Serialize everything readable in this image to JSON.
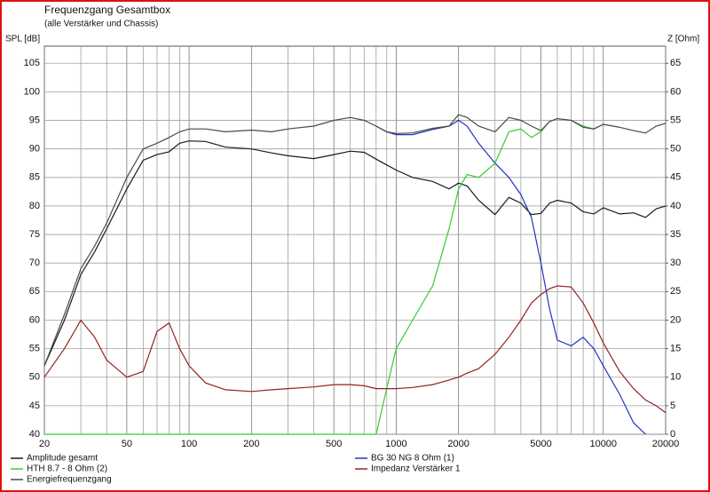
{
  "chart_data": {
    "type": "line",
    "title": "Frequenzgang Gesamtbox",
    "subtitle": "(alle Verstärker und Chassis)",
    "y_label": "SPL [dB]",
    "y2_label": "Z [Ohm]",
    "xscale": "log",
    "grid": true,
    "legend": "bottom",
    "x": [
      20,
      25,
      30,
      35,
      40,
      50,
      60,
      70,
      80,
      90,
      100,
      120,
      150,
      200,
      250,
      300,
      400,
      500,
      600,
      700,
      800,
      900,
      1000,
      1200,
      1500,
      1800,
      2000,
      2200,
      2500,
      3000,
      3500,
      4000,
      4500,
      5000,
      5500,
      6000,
      7000,
      8000,
      9000,
      10000,
      12000,
      14000,
      16000,
      18000,
      20000
    ],
    "xlim": [
      20,
      20000
    ],
    "xticks": [
      20,
      50,
      100,
      200,
      500,
      1000,
      2000,
      5000,
      10000,
      20000
    ],
    "xminor": [
      30,
      40,
      60,
      70,
      80,
      90,
      300,
      400,
      600,
      700,
      800,
      900,
      3000,
      4000,
      6000,
      7000,
      8000,
      9000
    ],
    "ylim": [
      40,
      108
    ],
    "yticks": [
      40,
      45,
      50,
      55,
      60,
      65,
      70,
      75,
      80,
      85,
      90,
      95,
      100,
      105
    ],
    "y2lim": [
      0,
      68
    ],
    "y2ticks": [
      0,
      5,
      10,
      15,
      20,
      25,
      30,
      35,
      40,
      45,
      50,
      55,
      60,
      65
    ],
    "series": [
      {
        "name": "Amplitude gesamt",
        "color": "#1a1a1a",
        "values": [
          52,
          60,
          68,
          72,
          76,
          83,
          88,
          89,
          89.5,
          91,
          91.4,
          91.3,
          90.3,
          90,
          89.3,
          88.8,
          88.3,
          89,
          89.6,
          89.4,
          88.2,
          87.2,
          86.3,
          85,
          84.3,
          83,
          84,
          83.5,
          81,
          78.5,
          81.5,
          80.5,
          78.5,
          78.7,
          80.5,
          81,
          80.5,
          79,
          78.6,
          79.7,
          78.6,
          78.8,
          78,
          79.5,
          80
        ]
      },
      {
        "name": "BG 30 NG 8 Ohm (1)",
        "color": "#2233c4",
        "values": [
          null,
          null,
          null,
          null,
          null,
          null,
          null,
          null,
          null,
          null,
          null,
          null,
          null,
          null,
          null,
          null,
          null,
          null,
          null,
          null,
          94,
          93,
          92.5,
          92.5,
          93.4,
          94,
          95,
          94,
          91,
          87.5,
          85,
          82,
          78,
          70,
          62,
          56.5,
          55.5,
          57,
          55,
          52,
          47,
          42,
          40,
          null,
          null
        ]
      },
      {
        "name": "HTH 8.7 - 8 Ohm (2)",
        "color": "#33cc33",
        "values": [
          40,
          40,
          40,
          40,
          40,
          40,
          40,
          40,
          40,
          40,
          40,
          40,
          40,
          40,
          40,
          40,
          40,
          40,
          40,
          40,
          40,
          48,
          55,
          60,
          66,
          76,
          83,
          85.5,
          85,
          87.5,
          93,
          93.5,
          92,
          93,
          94.8,
          95.3,
          95,
          94,
          93.5,
          94.3,
          93.8,
          null,
          null,
          null,
          null
        ]
      },
      {
        "name": "Impedanz Verstärker 1",
        "color": "#922222",
        "axis": "y2",
        "values": [
          10,
          15,
          20,
          17,
          13,
          10,
          11,
          18,
          19.5,
          15,
          12,
          9,
          7.8,
          7.5,
          7.8,
          8,
          8.3,
          8.7,
          8.7,
          8.5,
          8,
          8,
          8,
          8.2,
          8.7,
          9.5,
          10,
          10.7,
          11.5,
          14,
          17,
          20,
          23,
          24.5,
          25.5,
          26,
          25.8,
          23,
          19.5,
          16,
          11,
          8,
          6,
          5,
          3.8
        ]
      },
      {
        "name": "Energiefrequenzgang",
        "color": "#4a4a4a",
        "values": [
          52,
          61,
          69,
          73,
          77,
          85,
          90,
          91,
          92,
          93,
          93.5,
          93.5,
          93,
          93.3,
          93,
          93.5,
          94,
          95,
          95.5,
          95,
          94,
          93,
          92.7,
          92.8,
          93.6,
          94,
          96,
          95.5,
          94,
          93,
          95.5,
          95,
          94,
          93.2,
          94.8,
          95.3,
          95,
          93.8,
          93.5,
          94.3,
          93.8,
          93.2,
          92.8,
          94,
          94.5
        ]
      }
    ]
  }
}
